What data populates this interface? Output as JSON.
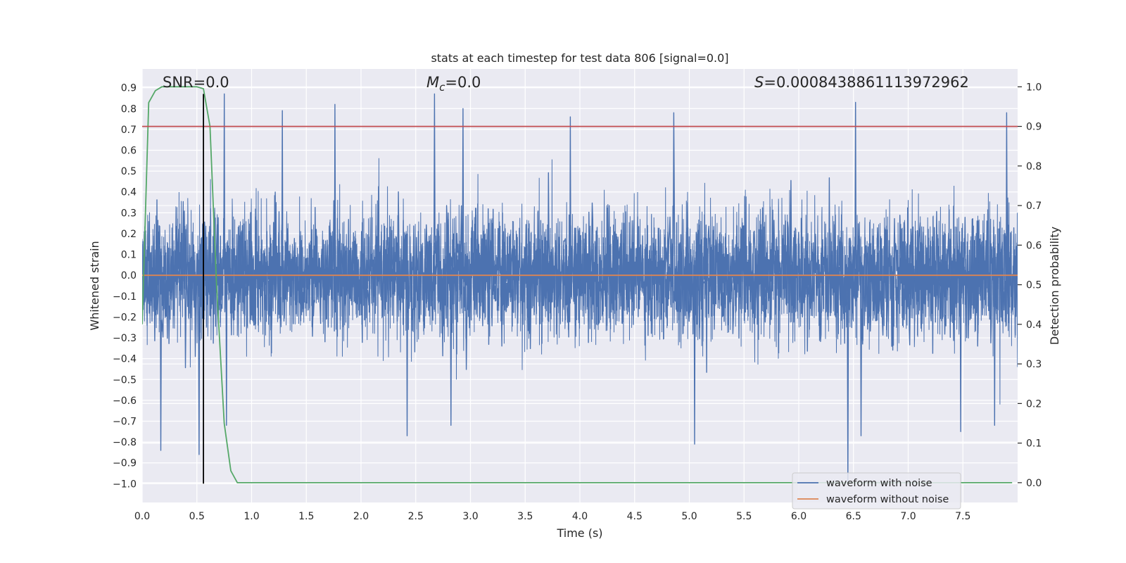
{
  "chart_data": {
    "type": "line",
    "title": "stats at each timestep for test data 806 [signal=0.0]",
    "xlabel": "Time (s)",
    "ylabel": "Whitened strain",
    "y2label": "Detection probability",
    "xlim": [
      0.0,
      8.0
    ],
    "ylim": [
      -1.09,
      0.99
    ],
    "y2lim": [
      -0.05,
      1.045
    ],
    "x_ticks": [
      0.0,
      0.5,
      1.0,
      1.5,
      2.0,
      2.5,
      3.0,
      3.5,
      4.0,
      4.5,
      5.0,
      5.5,
      6.0,
      6.5,
      7.0,
      7.5
    ],
    "x_tick_labels": [
      "0.0",
      "0.5",
      "1.0",
      "1.5",
      "2.0",
      "2.5",
      "3.0",
      "3.5",
      "4.0",
      "4.5",
      "5.0",
      "5.5",
      "6.0",
      "6.5",
      "7.0",
      "7.5"
    ],
    "y_ticks": [
      0.9,
      0.8,
      0.7,
      0.6,
      0.5,
      0.4,
      0.3,
      0.2,
      0.1,
      0.0,
      -0.1,
      -0.2,
      -0.3,
      -0.4,
      -0.5,
      -0.6,
      -0.7,
      -0.8,
      -0.9,
      -1.0
    ],
    "y_tick_labels": [
      "0.9",
      "0.8",
      "0.7",
      "0.6",
      "0.5",
      "0.4",
      "0.3",
      "0.2",
      "0.1",
      "0.0",
      "−0.1",
      "−0.2",
      "−0.3",
      "−0.4",
      "−0.5",
      "−0.6",
      "−0.7",
      "−0.8",
      "−0.9",
      "−1.0"
    ],
    "y2_ticks": [
      1.0,
      0.9,
      0.8,
      0.7,
      0.6,
      0.5,
      0.4,
      0.3,
      0.2,
      0.1,
      0.0
    ],
    "y2_tick_labels": [
      "1.0",
      "0.9",
      "0.8",
      "0.7",
      "0.6",
      "0.5",
      "0.4",
      "0.3",
      "0.2",
      "0.1",
      "0.0"
    ],
    "annotations": {
      "snr": "SNR=0.0",
      "mc_symbol": "M",
      "mc_sub": "c",
      "mc_value": "=0.0",
      "s_symbol": "S",
      "s_value": "=0.0008438861113972962"
    },
    "series": [
      {
        "name": "waveform with noise",
        "axis": "left",
        "color": "#4c72b0",
        "kind": "noise",
        "noise_sigma": 0.14,
        "sample_count": 1600,
        "extreme_points": [
          {
            "x": 0.75,
            "y": 0.87
          },
          {
            "x": 1.76,
            "y": 0.82
          },
          {
            "x": 2.67,
            "y": 0.87
          },
          {
            "x": 2.93,
            "y": 0.8
          },
          {
            "x": 6.52,
            "y": 0.83
          },
          {
            "x": 7.9,
            "y": 0.78
          },
          {
            "x": 1.28,
            "y": 0.79
          },
          {
            "x": 3.91,
            "y": 0.76
          },
          {
            "x": 4.86,
            "y": 0.78
          },
          {
            "x": 0.17,
            "y": -0.84
          },
          {
            "x": 0.52,
            "y": -0.86
          },
          {
            "x": 0.77,
            "y": -0.72
          },
          {
            "x": 2.42,
            "y": -0.77
          },
          {
            "x": 2.82,
            "y": -0.72
          },
          {
            "x": 5.05,
            "y": -0.81
          },
          {
            "x": 6.45,
            "y": -1.0
          },
          {
            "x": 6.57,
            "y": -0.77
          },
          {
            "x": 7.48,
            "y": -0.75
          },
          {
            "x": 7.79,
            "y": -0.72
          }
        ]
      },
      {
        "name": "waveform without noise",
        "axis": "left",
        "color": "#dd8452",
        "x": [
          0.0,
          8.0
        ],
        "y": [
          0.0,
          0.0
        ]
      },
      {
        "name": "detection probability",
        "axis": "right",
        "color": "#55a868",
        "x": [
          0.0,
          0.06,
          0.12,
          0.18,
          0.25,
          0.31,
          0.37,
          0.43,
          0.5,
          0.56,
          0.62,
          0.68,
          0.75,
          0.81,
          0.87,
          0.93,
          1.0,
          2.0,
          3.0,
          4.0,
          5.0,
          6.0,
          7.0,
          7.5,
          7.95
        ],
        "y": [
          0.4,
          0.96,
          0.99,
          1.0,
          1.0,
          1.0,
          1.0,
          1.0,
          1.0,
          0.995,
          0.9,
          0.5,
          0.15,
          0.03,
          0.0,
          0.0,
          0.0,
          0.0,
          0.0,
          0.0,
          0.0,
          0.0,
          0.0,
          0.0,
          0.0
        ]
      },
      {
        "name": "threshold",
        "axis": "right",
        "color": "#c44e52",
        "x": [
          0.0,
          8.0
        ],
        "y": [
          0.9,
          0.9
        ]
      },
      {
        "name": "detection time",
        "axis": "left",
        "color": "#000000",
        "x": [
          0.56,
          0.56
        ],
        "y": [
          -1.0,
          0.87
        ]
      }
    ],
    "legend": {
      "position": "lower-right",
      "entries": [
        {
          "label": "waveform with noise",
          "color": "#4c72b0"
        },
        {
          "label": "waveform without noise",
          "color": "#dd8452"
        }
      ]
    },
    "grid": true,
    "colors": {
      "plot_background": "#eaeaf2",
      "grid": "#ffffff",
      "text": "#262626"
    }
  }
}
